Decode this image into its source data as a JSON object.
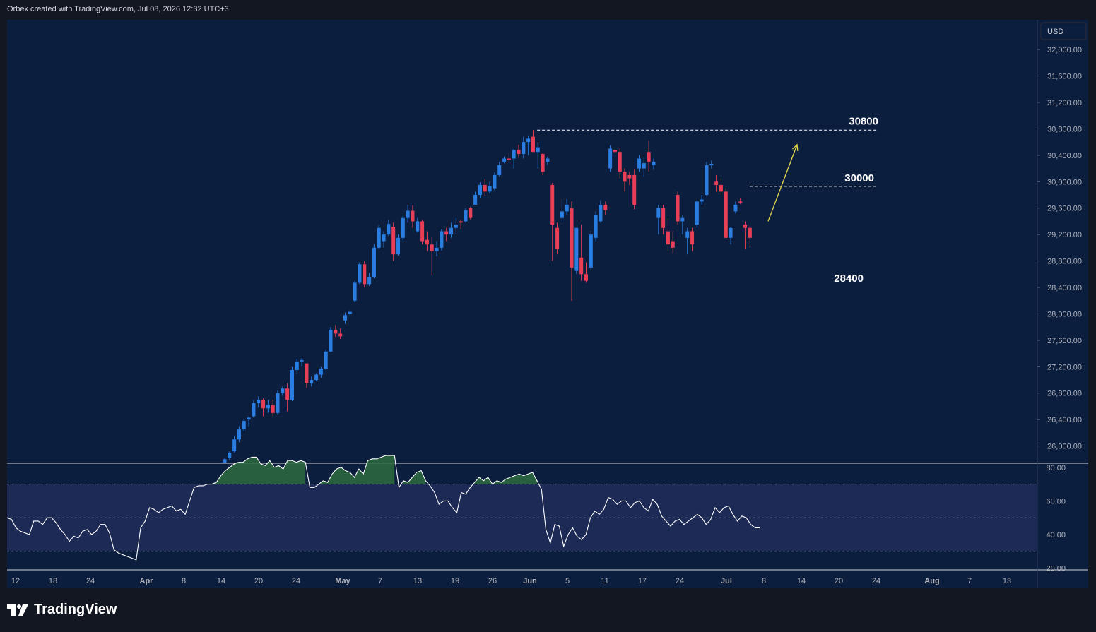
{
  "header": {
    "attribution": "Orbex created with TradingView.com, Jul 08, 2026 12:32 UTC+3"
  },
  "footer": {
    "brand": "TradingView"
  },
  "colors": {
    "background": "#131722",
    "plot_bg": "#0c1e3e",
    "bull": "#2a7de1",
    "bear": "#e83e56",
    "rsi_line": "#ffffff",
    "rsi_band": "#1c2a55",
    "rsi_overbought_fill": "#2e6b3e",
    "arrow": "#e6d94a"
  },
  "chart_data": [
    {
      "type": "candlestick",
      "title": "",
      "currency": "USD",
      "y_ticks": [
        "32,000.00",
        "31,600.00",
        "31,200.00",
        "30,800.00",
        "30,400.00",
        "30,000.00",
        "29,600.00",
        "29,200.00",
        "28,800.00",
        "28,400.00",
        "28,000.00",
        "27,600.00",
        "27,200.00",
        "26,800.00",
        "26,400.00",
        "26,000.00"
      ],
      "ylim": [
        25750,
        32450
      ],
      "x_ticks": [
        "12",
        "18",
        "24",
        "Apr",
        "8",
        "14",
        "20",
        "24",
        "May",
        "7",
        "13",
        "19",
        "26",
        "Jun",
        "5",
        "11",
        "17",
        "24",
        "Jul",
        "8",
        "14",
        "20",
        "24",
        "Aug",
        "7",
        "13"
      ],
      "annotations": [
        {
          "label": "30800",
          "level": 30780,
          "style": "dashed"
        },
        {
          "label": "30000",
          "level": 29930,
          "style": "dashed"
        },
        {
          "label": "28400",
          "level": 28540,
          "style": "text"
        }
      ],
      "arrow": {
        "from": {
          "bar": 62,
          "price": 29400
        },
        "to": {
          "bar": 66,
          "price": 30560
        }
      },
      "candles": [
        {
          "o": 25750,
          "h": 25820,
          "l": 25750,
          "c": 25800
        },
        {
          "o": 25820,
          "h": 25920,
          "l": 25790,
          "c": 25900
        },
        {
          "o": 25920,
          "h": 26150,
          "l": 25900,
          "c": 26100
        },
        {
          "o": 26100,
          "h": 26300,
          "l": 26060,
          "c": 26250
        },
        {
          "o": 26250,
          "h": 26400,
          "l": 26220,
          "c": 26380
        },
        {
          "o": 26400,
          "h": 26450,
          "l": 26300,
          "c": 26430
        },
        {
          "o": 26450,
          "h": 26700,
          "l": 26430,
          "c": 26650
        },
        {
          "o": 26650,
          "h": 26750,
          "l": 26580,
          "c": 26700
        },
        {
          "o": 26700,
          "h": 26720,
          "l": 26450,
          "c": 26570
        },
        {
          "o": 26570,
          "h": 26700,
          "l": 26500,
          "c": 26620
        },
        {
          "o": 26620,
          "h": 26700,
          "l": 26450,
          "c": 26500
        },
        {
          "o": 26500,
          "h": 26850,
          "l": 26480,
          "c": 26800
        },
        {
          "o": 26800,
          "h": 26900,
          "l": 26760,
          "c": 26870
        },
        {
          "o": 26870,
          "h": 26950,
          "l": 26520,
          "c": 26700
        },
        {
          "o": 26700,
          "h": 27200,
          "l": 26680,
          "c": 27150
        },
        {
          "o": 27150,
          "h": 27320,
          "l": 27100,
          "c": 27280
        },
        {
          "o": 27280,
          "h": 27330,
          "l": 27200,
          "c": 27300
        },
        {
          "o": 27250,
          "h": 27200,
          "l": 26880,
          "c": 26950
        },
        {
          "o": 26950,
          "h": 27050,
          "l": 26900,
          "c": 27000
        },
        {
          "o": 27000,
          "h": 27100,
          "l": 26980,
          "c": 27080
        },
        {
          "o": 27080,
          "h": 27200,
          "l": 27030,
          "c": 27170
        },
        {
          "o": 27170,
          "h": 27460,
          "l": 27150,
          "c": 27430
        },
        {
          "o": 27430,
          "h": 27800,
          "l": 27420,
          "c": 27760
        },
        {
          "o": 27760,
          "h": 27830,
          "l": 27650,
          "c": 27700
        },
        {
          "o": 27700,
          "h": 27780,
          "l": 27620,
          "c": 27660
        },
        {
          "o": 27900,
          "h": 28020,
          "l": 27850,
          "c": 27980
        },
        {
          "o": 28000,
          "h": 28050,
          "l": 27970,
          "c": 28030
        },
        {
          "o": 28200,
          "h": 28500,
          "l": 28180,
          "c": 28470
        },
        {
          "o": 28470,
          "h": 28780,
          "l": 28450,
          "c": 28750
        },
        {
          "o": 28750,
          "h": 28800,
          "l": 28400,
          "c": 28450
        },
        {
          "o": 28450,
          "h": 28620,
          "l": 28420,
          "c": 28560
        },
        {
          "o": 28560,
          "h": 29050,
          "l": 28540,
          "c": 29000
        },
        {
          "o": 29000,
          "h": 29350,
          "l": 28980,
          "c": 29300
        },
        {
          "o": 29100,
          "h": 29250,
          "l": 29000,
          "c": 29200
        },
        {
          "o": 29200,
          "h": 29420,
          "l": 29180,
          "c": 29360
        },
        {
          "o": 29320,
          "h": 29380,
          "l": 28800,
          "c": 28900
        },
        {
          "o": 28900,
          "h": 29200,
          "l": 28880,
          "c": 29150
        },
        {
          "o": 29150,
          "h": 29500,
          "l": 29100,
          "c": 29450
        },
        {
          "o": 29450,
          "h": 29650,
          "l": 29380,
          "c": 29560
        },
        {
          "o": 29560,
          "h": 29640,
          "l": 29300,
          "c": 29400
        },
        {
          "o": 29250,
          "h": 29450,
          "l": 29230,
          "c": 29400
        },
        {
          "o": 29400,
          "h": 29420,
          "l": 29050,
          "c": 29100
        },
        {
          "o": 29120,
          "h": 29250,
          "l": 28950,
          "c": 29050
        },
        {
          "o": 29050,
          "h": 29160,
          "l": 28580,
          "c": 28950
        },
        {
          "o": 28950,
          "h": 29100,
          "l": 28870,
          "c": 29000
        },
        {
          "o": 29000,
          "h": 29280,
          "l": 28960,
          "c": 29250
        },
        {
          "o": 29250,
          "h": 29300,
          "l": 29100,
          "c": 29200
        },
        {
          "o": 29200,
          "h": 29380,
          "l": 29150,
          "c": 29300
        },
        {
          "o": 29300,
          "h": 29450,
          "l": 29200,
          "c": 29350
        },
        {
          "o": 29400,
          "h": 29420,
          "l": 29280,
          "c": 29380
        },
        {
          "o": 29400,
          "h": 29600,
          "l": 29380,
          "c": 29570
        },
        {
          "o": 29600,
          "h": 29620,
          "l": 29420,
          "c": 29450
        },
        {
          "o": 29650,
          "h": 29850,
          "l": 29650,
          "c": 29800
        },
        {
          "o": 29800,
          "h": 29990,
          "l": 29760,
          "c": 29950
        },
        {
          "o": 29950,
          "h": 30040,
          "l": 29780,
          "c": 29850
        },
        {
          "o": 29850,
          "h": 30000,
          "l": 29820,
          "c": 29930
        },
        {
          "o": 29900,
          "h": 30140,
          "l": 29870,
          "c": 30100
        },
        {
          "o": 30100,
          "h": 30300,
          "l": 30080,
          "c": 30250
        },
        {
          "o": 30300,
          "h": 30380,
          "l": 30280,
          "c": 30350
        },
        {
          "o": 30350,
          "h": 30440,
          "l": 30300,
          "c": 30330
        },
        {
          "o": 30350,
          "h": 30500,
          "l": 30200,
          "c": 30480
        },
        {
          "o": 30480,
          "h": 30560,
          "l": 30360,
          "c": 30420
        },
        {
          "o": 30420,
          "h": 30680,
          "l": 30350,
          "c": 30600
        },
        {
          "o": 30600,
          "h": 30700,
          "l": 30400,
          "c": 30650
        },
        {
          "o": 30680,
          "h": 30780,
          "l": 30450,
          "c": 30450
        },
        {
          "o": 30450,
          "h": 30600,
          "l": 30200,
          "c": 30520
        },
        {
          "o": 30420,
          "h": 30440,
          "l": 30100,
          "c": 30150
        },
        {
          "o": 30300,
          "h": 30380,
          "l": 30250,
          "c": 30350
        },
        {
          "o": 29950,
          "h": 29980,
          "l": 28800,
          "c": 29350
        },
        {
          "o": 29300,
          "h": 29380,
          "l": 28900,
          "c": 28980
        },
        {
          "o": 29450,
          "h": 29750,
          "l": 29400,
          "c": 29550
        },
        {
          "o": 29550,
          "h": 29740,
          "l": 29500,
          "c": 29650
        },
        {
          "o": 29600,
          "h": 29700,
          "l": 28200,
          "c": 28700
        },
        {
          "o": 28650,
          "h": 29300,
          "l": 28600,
          "c": 29300
        },
        {
          "o": 28850,
          "h": 29350,
          "l": 28500,
          "c": 28600
        },
        {
          "o": 28600,
          "h": 28780,
          "l": 28470,
          "c": 28500
        },
        {
          "o": 28700,
          "h": 29250,
          "l": 28650,
          "c": 29200
        },
        {
          "o": 29150,
          "h": 29550,
          "l": 29100,
          "c": 29500
        },
        {
          "o": 29400,
          "h": 29720,
          "l": 29380,
          "c": 29650
        },
        {
          "o": 29650,
          "h": 29700,
          "l": 29500,
          "c": 29570
        },
        {
          "o": 30200,
          "h": 30550,
          "l": 30150,
          "c": 30500
        },
        {
          "o": 30480,
          "h": 30520,
          "l": 30420,
          "c": 30450
        },
        {
          "o": 30450,
          "h": 30500,
          "l": 30050,
          "c": 30150
        },
        {
          "o": 30150,
          "h": 30200,
          "l": 29850,
          "c": 30000
        },
        {
          "o": 30100,
          "h": 30150,
          "l": 29950,
          "c": 30050
        },
        {
          "o": 30100,
          "h": 30180,
          "l": 29580,
          "c": 29650
        },
        {
          "o": 30200,
          "h": 30400,
          "l": 30150,
          "c": 30350
        },
        {
          "o": 30200,
          "h": 30380,
          "l": 30080,
          "c": 30280
        },
        {
          "o": 30450,
          "h": 30620,
          "l": 30150,
          "c": 30300
        },
        {
          "o": 30250,
          "h": 30350,
          "l": 30180,
          "c": 30300
        },
        {
          "o": 29450,
          "h": 29650,
          "l": 29200,
          "c": 29600
        },
        {
          "o": 29600,
          "h": 29650,
          "l": 29200,
          "c": 29300
        },
        {
          "o": 29250,
          "h": 29450,
          "l": 28950,
          "c": 29050
        },
        {
          "o": 29100,
          "h": 29250,
          "l": 28920,
          "c": 29000
        },
        {
          "o": 29800,
          "h": 29850,
          "l": 29350,
          "c": 29400
        },
        {
          "o": 29400,
          "h": 29500,
          "l": 29200,
          "c": 29450
        },
        {
          "o": 29150,
          "h": 29300,
          "l": 28900,
          "c": 29250
        },
        {
          "o": 29250,
          "h": 29300,
          "l": 28950,
          "c": 29050
        },
        {
          "o": 29350,
          "h": 29720,
          "l": 29300,
          "c": 29700
        },
        {
          "o": 29700,
          "h": 29800,
          "l": 29650,
          "c": 29730
        },
        {
          "o": 29800,
          "h": 30300,
          "l": 29780,
          "c": 30250
        },
        {
          "o": 30250,
          "h": 30320,
          "l": 30200,
          "c": 30270
        },
        {
          "o": 30000,
          "h": 30100,
          "l": 29850,
          "c": 29950
        },
        {
          "o": 29950,
          "h": 30050,
          "l": 29800,
          "c": 29850
        },
        {
          "o": 29850,
          "h": 29900,
          "l": 29150,
          "c": 29150
        },
        {
          "o": 29150,
          "h": 29320,
          "l": 29050,
          "c": 29300
        },
        {
          "o": 29550,
          "h": 29700,
          "l": 29520,
          "c": 29650
        },
        {
          "o": 29700,
          "h": 29750,
          "l": 29660,
          "c": 29680
        },
        {
          "o": 29350,
          "h": 29400,
          "l": 28980,
          "c": 29300
        },
        {
          "o": 29300,
          "h": 29330,
          "l": 29000,
          "c": 29150
        }
      ]
    },
    {
      "type": "line",
      "title": "",
      "y_ticks": [
        "80.00",
        "60.00",
        "40.00",
        "20.00"
      ],
      "ylim": [
        19,
        82
      ],
      "bands": {
        "upper": 70,
        "middle": 50,
        "lower": 30
      },
      "series": [
        {
          "values": [
            50,
            49,
            44,
            42,
            41,
            40,
            48,
            48,
            46,
            50,
            50,
            47,
            43,
            40,
            36,
            39,
            38,
            42,
            43,
            40,
            42,
            46,
            46,
            41,
            31,
            29,
            28,
            27,
            26,
            25,
            44,
            48,
            56,
            55,
            53,
            55,
            56,
            57,
            54,
            55,
            52,
            60,
            68,
            69,
            69,
            70,
            70,
            71,
            75,
            78,
            80,
            82,
            83,
            83,
            85,
            86,
            86,
            82,
            81,
            84,
            80,
            81,
            79,
            84,
            84,
            83,
            84,
            83,
            68,
            68,
            70,
            72,
            71,
            76,
            79,
            80,
            78,
            77,
            74,
            79,
            76,
            84,
            85,
            85,
            86,
            87,
            87,
            87,
            68,
            72,
            71,
            74,
            77,
            78,
            72,
            69,
            65,
            58,
            60,
            60,
            56,
            53,
            65,
            64,
            68,
            71,
            74,
            72,
            74,
            70,
            72,
            71,
            73,
            74,
            75,
            76,
            75,
            76,
            77,
            72,
            67,
            43,
            35,
            46,
            45,
            33,
            40,
            44,
            39,
            37,
            40,
            50,
            54,
            52,
            55,
            62,
            61,
            58,
            60,
            60,
            56,
            59,
            60,
            56,
            54,
            61,
            58,
            51,
            48,
            45,
            48,
            49,
            46,
            48,
            50,
            52,
            50,
            46,
            49,
            56,
            53,
            56,
            57,
            52,
            48,
            51,
            50,
            46,
            44,
            44
          ]
        }
      ]
    }
  ]
}
